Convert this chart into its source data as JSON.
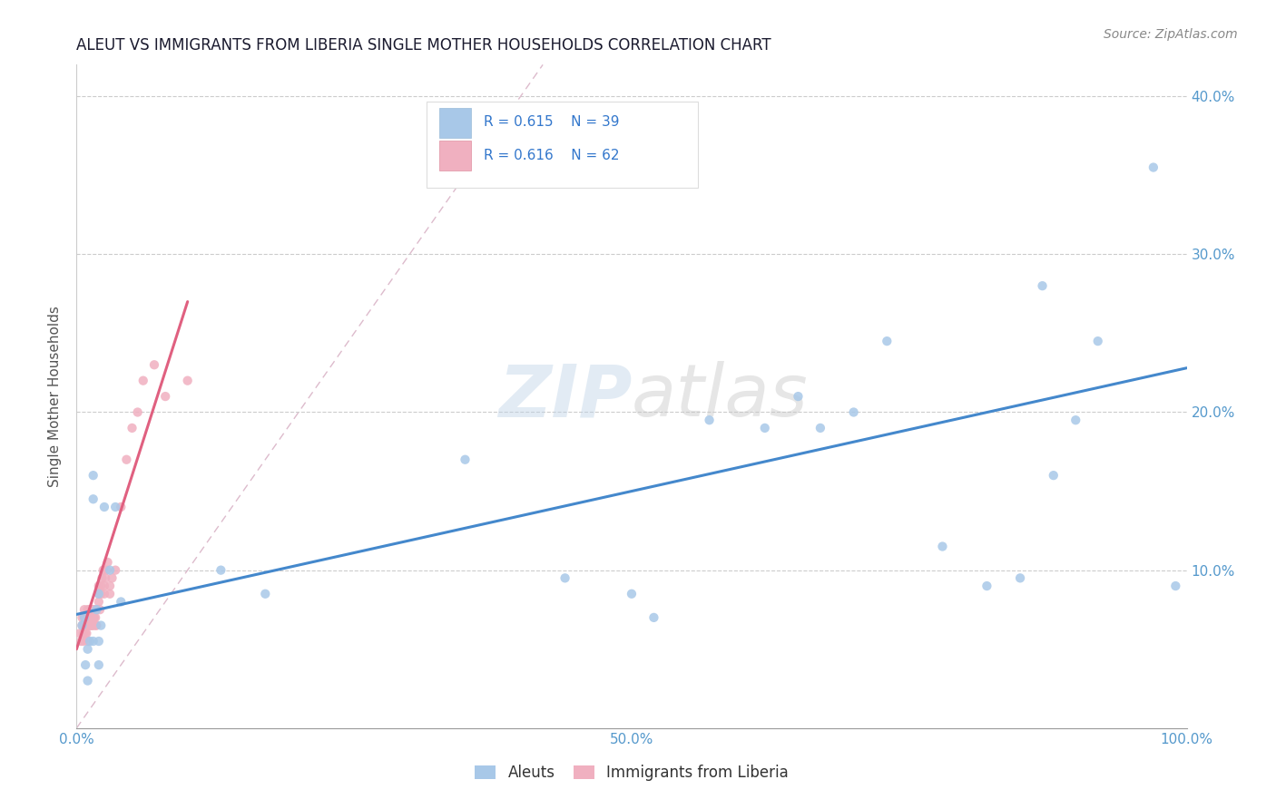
{
  "title": "ALEUT VS IMMIGRANTS FROM LIBERIA SINGLE MOTHER HOUSEHOLDS CORRELATION CHART",
  "source": "Source: ZipAtlas.com",
  "ylabel": "Single Mother Households",
  "xlim": [
    0,
    1.0
  ],
  "ylim": [
    0,
    0.42
  ],
  "aleut_color": "#a8c8e8",
  "aleut_edge": "#7aace0",
  "liberia_color": "#f0b0c0",
  "liberia_edge": "#e080a0",
  "trendline_aleut_color": "#4488cc",
  "trendline_liberia_color": "#e06080",
  "diagonal_color": "#ddbbcc",
  "R_aleut": 0.615,
  "N_aleut": 39,
  "R_liberia": 0.616,
  "N_liberia": 62,
  "legend_labels": [
    "Aleuts",
    "Immigrants from Liberia"
  ],
  "watermark": "ZIPatlas",
  "aleut_x": [
    0.005,
    0.007,
    0.008,
    0.01,
    0.01,
    0.012,
    0.015,
    0.015,
    0.015,
    0.018,
    0.02,
    0.02,
    0.02,
    0.022,
    0.025,
    0.03,
    0.035,
    0.04,
    0.13,
    0.17,
    0.35,
    0.44,
    0.5,
    0.52,
    0.57,
    0.62,
    0.65,
    0.67,
    0.7,
    0.73,
    0.78,
    0.82,
    0.85,
    0.87,
    0.88,
    0.9,
    0.92,
    0.97,
    0.99
  ],
  "aleut_y": [
    0.065,
    0.07,
    0.04,
    0.05,
    0.03,
    0.055,
    0.16,
    0.145,
    0.055,
    0.075,
    0.085,
    0.055,
    0.04,
    0.065,
    0.14,
    0.1,
    0.14,
    0.08,
    0.1,
    0.085,
    0.17,
    0.095,
    0.085,
    0.07,
    0.195,
    0.19,
    0.21,
    0.19,
    0.2,
    0.245,
    0.115,
    0.09,
    0.095,
    0.28,
    0.16,
    0.195,
    0.245,
    0.355,
    0.09
  ],
  "liberia_x": [
    0.003,
    0.004,
    0.005,
    0.005,
    0.006,
    0.006,
    0.007,
    0.007,
    0.007,
    0.008,
    0.008,
    0.008,
    0.009,
    0.009,
    0.009,
    0.01,
    0.01,
    0.01,
    0.01,
    0.011,
    0.011,
    0.012,
    0.012,
    0.012,
    0.013,
    0.013,
    0.013,
    0.014,
    0.015,
    0.015,
    0.015,
    0.016,
    0.016,
    0.017,
    0.017,
    0.018,
    0.018,
    0.02,
    0.02,
    0.02,
    0.021,
    0.022,
    0.022,
    0.023,
    0.024,
    0.025,
    0.025,
    0.026,
    0.027,
    0.028,
    0.03,
    0.03,
    0.032,
    0.035,
    0.04,
    0.045,
    0.05,
    0.055,
    0.06,
    0.07,
    0.08,
    0.1
  ],
  "liberia_y": [
    0.06,
    0.055,
    0.07,
    0.065,
    0.06,
    0.055,
    0.065,
    0.07,
    0.075,
    0.06,
    0.065,
    0.07,
    0.06,
    0.065,
    0.07,
    0.055,
    0.065,
    0.07,
    0.075,
    0.065,
    0.07,
    0.065,
    0.07,
    0.075,
    0.065,
    0.07,
    0.075,
    0.065,
    0.065,
    0.07,
    0.075,
    0.07,
    0.075,
    0.065,
    0.07,
    0.065,
    0.075,
    0.08,
    0.085,
    0.09,
    0.075,
    0.085,
    0.09,
    0.095,
    0.1,
    0.085,
    0.09,
    0.095,
    0.1,
    0.105,
    0.085,
    0.09,
    0.095,
    0.1,
    0.14,
    0.17,
    0.19,
    0.2,
    0.22,
    0.23,
    0.21,
    0.22
  ],
  "trendline_aleut_x0": 0.0,
  "trendline_aleut_x1": 1.0,
  "trendline_aleut_y0": 0.072,
  "trendline_aleut_y1": 0.228,
  "trendline_liberia_x0": 0.0,
  "trendline_liberia_x1": 0.1,
  "trendline_liberia_y0": 0.05,
  "trendline_liberia_y1": 0.27
}
